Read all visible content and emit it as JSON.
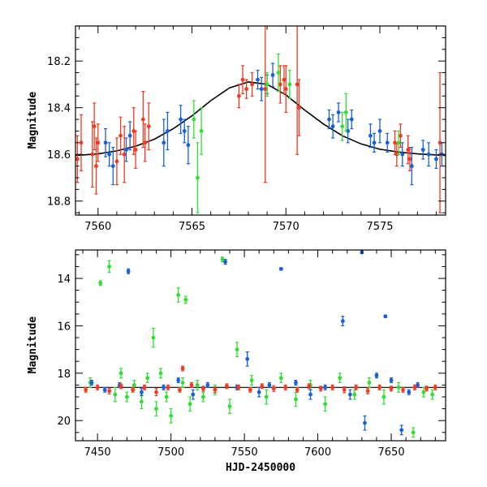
{
  "colors": {
    "blue": "#1a5fd6",
    "red": "#ee3b23",
    "green": "#33dd33",
    "model": "#000000"
  },
  "chart_data": [
    {
      "id": "top",
      "type": "scatter",
      "xlabel": "",
      "ylabel": "Magnitude",
      "xlim": [
        7558.8,
        7578.5
      ],
      "ylim": [
        18.86,
        18.05
      ],
      "y_inverted": true,
      "xticks": [
        7560,
        7565,
        7570,
        7575
      ],
      "xtick_labels": [
        "7560",
        "7565",
        "7570",
        "7575"
      ],
      "yticks": [
        18.2,
        18.4,
        18.6,
        18.8
      ],
      "ytick_labels": [
        "18.2",
        "18.4",
        "18.6",
        "18.8"
      ],
      "model_curve": {
        "x": [
          7558.8,
          7560,
          7561,
          7562,
          7563,
          7564,
          7565,
          7566,
          7567,
          7568,
          7569,
          7570,
          7571,
          7572,
          7573,
          7574,
          7575,
          7576,
          7577,
          7578.5
        ],
        "y": [
          18.605,
          18.598,
          18.585,
          18.565,
          18.535,
          18.49,
          18.435,
          18.37,
          18.315,
          18.29,
          18.3,
          18.345,
          18.41,
          18.47,
          18.52,
          18.555,
          18.578,
          18.59,
          18.598,
          18.605
        ]
      },
      "series": [
        {
          "color": "red",
          "x": [
            7558.9,
            7559.1,
            7559.7,
            7559.8,
            7559.9,
            7560.0,
            7561.0,
            7561.2,
            7561.4,
            7561.9,
            7562.0,
            7562.4,
            7562.5,
            7562.7,
            7567.5,
            7567.7,
            7567.9,
            7568.2,
            7568.9,
            7569.7,
            7569.9,
            7570.0,
            7570.6,
            7570.7,
            7575.8,
            7575.9,
            7576.1,
            7576.5,
            7576.6,
            7578.2
          ],
          "y": [
            18.62,
            18.55,
            18.6,
            18.48,
            18.65,
            18.55,
            18.63,
            18.52,
            18.6,
            18.5,
            18.58,
            18.45,
            18.55,
            18.48,
            18.35,
            18.28,
            18.32,
            18.3,
            18.32,
            18.3,
            18.28,
            18.32,
            18.3,
            18.4,
            18.55,
            18.6,
            18.52,
            18.58,
            18.62,
            18.55
          ],
          "err": [
            0.1,
            0.12,
            0.14,
            0.1,
            0.12,
            0.08,
            0.1,
            0.08,
            0.12,
            0.1,
            0.08,
            0.12,
            0.08,
            0.1,
            0.05,
            0.06,
            0.04,
            0.05,
            0.4,
            0.08,
            0.06,
            0.1,
            0.3,
            0.12,
            0.05,
            0.05,
            0.05,
            0.06,
            0.05,
            0.3
          ]
        },
        {
          "color": "blue",
          "x": [
            7560.4,
            7560.6,
            7560.8,
            7561.5,
            7561.7,
            7563.5,
            7563.7,
            7564.4,
            7564.6,
            7564.8,
            7568.5,
            7568.7,
            7569.0,
            7569.3,
            7572.3,
            7572.5,
            7572.8,
            7573.3,
            7573.5,
            7574.5,
            7574.7,
            7575.0,
            7575.4,
            7576.2,
            7576.7,
            7577.3,
            7577.6,
            7578.0,
            7578.3
          ],
          "y": [
            18.55,
            18.6,
            18.65,
            18.58,
            18.52,
            18.55,
            18.5,
            18.45,
            18.5,
            18.56,
            18.28,
            18.32,
            18.3,
            18.26,
            18.45,
            18.48,
            18.42,
            18.5,
            18.45,
            18.52,
            18.55,
            18.5,
            18.55,
            18.6,
            18.65,
            18.58,
            18.6,
            18.62,
            18.6
          ],
          "err": [
            0.06,
            0.05,
            0.08,
            0.05,
            0.06,
            0.1,
            0.08,
            0.06,
            0.05,
            0.08,
            0.04,
            0.05,
            0.04,
            0.05,
            0.04,
            0.05,
            0.04,
            0.05,
            0.04,
            0.05,
            0.04,
            0.05,
            0.04,
            0.05,
            0.08,
            0.04,
            0.05,
            0.04,
            0.05
          ]
        },
        {
          "color": "green",
          "x": [
            7565.1,
            7565.3,
            7565.5,
            7569.0,
            7569.6,
            7570.2,
            7573.0,
            7573.2,
            7576.0
          ],
          "y": [
            18.45,
            18.7,
            18.5,
            18.3,
            18.25,
            18.3,
            18.48,
            18.42,
            18.55
          ],
          "err": [
            0.08,
            0.15,
            0.1,
            0.05,
            0.08,
            0.06,
            0.06,
            0.08,
            0.05
          ]
        }
      ]
    },
    {
      "id": "bottom",
      "type": "scatter",
      "xlabel": "HJD-2450000",
      "ylabel": "Magnitude",
      "xlim": [
        7435,
        7687
      ],
      "ylim": [
        20.85,
        12.8
      ],
      "y_inverted": true,
      "xticks": [
        7450,
        7500,
        7550,
        7600,
        7650
      ],
      "xtick_labels": [
        "7450",
        "7500",
        "7550",
        "7600",
        "7650"
      ],
      "yticks": [
        14,
        16,
        18,
        20
      ],
      "ytick_labels": [
        "14",
        "16",
        "18",
        "20"
      ],
      "reference_line": 18.6,
      "series": [
        {
          "color": "green",
          "x": [
            7445,
            7452,
            7458,
            7462,
            7466,
            7470,
            7475,
            7480,
            7484,
            7488,
            7490,
            7493,
            7497,
            7500,
            7505,
            7508,
            7510,
            7513,
            7518,
            7522,
            7530,
            7535,
            7540,
            7545,
            7555,
            7565,
            7575,
            7585,
            7595,
            7605,
            7615,
            7625,
            7635,
            7645,
            7655,
            7665,
            7672,
            7678
          ],
          "y": [
            18.4,
            14.2,
            13.5,
            18.9,
            18.0,
            19.0,
            18.5,
            19.2,
            18.2,
            16.5,
            19.5,
            18.0,
            19.0,
            19.8,
            14.7,
            18.4,
            14.9,
            19.3,
            18.5,
            19.0,
            18.7,
            13.2,
            19.4,
            17.0,
            18.3,
            19.0,
            18.2,
            19.1,
            18.5,
            19.3,
            18.2,
            18.9,
            18.4,
            19.0,
            18.6,
            20.5,
            18.8,
            18.9
          ],
          "err": [
            0.2,
            0.1,
            0.25,
            0.3,
            0.2,
            0.2,
            0.2,
            0.3,
            0.2,
            0.4,
            0.3,
            0.2,
            0.2,
            0.3,
            0.3,
            0.2,
            0.15,
            0.3,
            0.2,
            0.2,
            0.2,
            0.1,
            0.3,
            0.3,
            0.2,
            0.3,
            0.2,
            0.3,
            0.2,
            0.3,
            0.2,
            0.2,
            0.2,
            0.3,
            0.2,
            0.2,
            0.2,
            0.2
          ]
        },
        {
          "color": "blue",
          "x": [
            7446,
            7455,
            7465,
            7471,
            7480,
            7495,
            7505,
            7515,
            7525,
            7537,
            7545,
            7552,
            7560,
            7567,
            7575,
            7585,
            7595,
            7605,
            7617,
            7622,
            7630,
            7632,
            7640,
            7646,
            7650,
            7657,
            7662,
            7668
          ],
          "y": [
            18.4,
            18.7,
            18.5,
            13.7,
            18.8,
            18.6,
            18.3,
            18.9,
            18.5,
            13.3,
            18.6,
            17.4,
            18.8,
            18.5,
            13.6,
            18.4,
            18.9,
            18.6,
            15.8,
            18.9,
            12.9,
            20.1,
            18.1,
            15.6,
            18.3,
            20.4,
            18.8,
            18.5
          ],
          "err": [
            0.1,
            0.1,
            0.1,
            0.1,
            0.15,
            0.1,
            0.1,
            0.2,
            0.1,
            0.1,
            0.1,
            0.3,
            0.2,
            0.1,
            0.05,
            0.1,
            0.2,
            0.1,
            0.2,
            0.2,
            0.05,
            0.3,
            0.1,
            0.05,
            0.1,
            0.2,
            0.1,
            0.1
          ]
        },
        {
          "color": "red",
          "x": [
            7442,
            7450,
            7458,
            7466,
            7474,
            7482,
            7490,
            7498,
            7506,
            7508,
            7514,
            7522,
            7530,
            7538,
            7546,
            7554,
            7562,
            7570,
            7578,
            7586,
            7594,
            7602,
            7610,
            7618,
            7626,
            7634,
            7642,
            7650,
            7658,
            7666,
            7674,
            7680
          ],
          "y": [
            18.7,
            18.6,
            18.75,
            18.55,
            18.7,
            18.6,
            18.8,
            18.6,
            18.7,
            17.8,
            18.5,
            18.65,
            18.7,
            18.55,
            18.6,
            18.7,
            18.55,
            18.65,
            18.6,
            18.7,
            18.55,
            18.65,
            18.6,
            18.7,
            18.6,
            18.75,
            18.6,
            18.65,
            18.7,
            18.6,
            18.65,
            18.6
          ],
          "err": [
            0.1,
            0.1,
            0.12,
            0.1,
            0.1,
            0.1,
            0.15,
            0.1,
            0.1,
            0.1,
            0.1,
            0.1,
            0.12,
            0.1,
            0.1,
            0.1,
            0.1,
            0.12,
            0.1,
            0.1,
            0.1,
            0.1,
            0.1,
            0.12,
            0.1,
            0.12,
            0.1,
            0.1,
            0.1,
            0.1,
            0.1,
            0.1
          ]
        }
      ]
    }
  ]
}
